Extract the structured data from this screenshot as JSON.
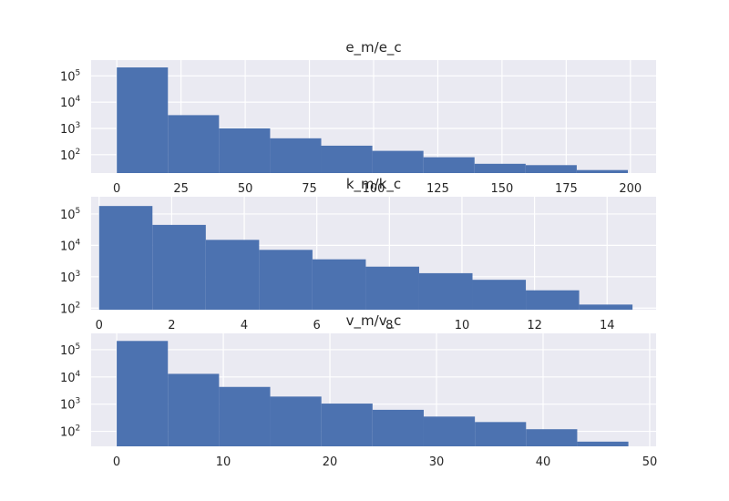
{
  "chart_data": [
    {
      "type": "bar",
      "title": "e_m/e_c",
      "xlabel": "",
      "ylabel": "",
      "yscale": "log",
      "grid": true,
      "bar_color": "#4c72b0",
      "background_color": "#eaeaf2",
      "xlim": [
        -10,
        210
      ],
      "ylim_log10": [
        1.3,
        5.6
      ],
      "xticks": [
        "0",
        "25",
        "50",
        "75",
        "100",
        "125",
        "150",
        "175",
        "200"
      ],
      "xtick_values": [
        0,
        25,
        50,
        75,
        100,
        125,
        150,
        175,
        200
      ],
      "yticks": [
        {
          "base": "10",
          "exp": "2"
        },
        {
          "base": "10",
          "exp": "3"
        },
        {
          "base": "10",
          "exp": "4"
        },
        {
          "base": "10",
          "exp": "5"
        }
      ],
      "ytick_values": [
        100,
        1000,
        10000,
        100000
      ],
      "bin_edges": [
        0,
        19.9,
        39.8,
        59.7,
        79.6,
        99.5,
        119.4,
        139.3,
        159.2,
        179.1,
        199
      ],
      "values": [
        210000,
        3200,
        1000,
        420,
        220,
        140,
        80,
        45,
        40,
        26
      ]
    },
    {
      "type": "bar",
      "title": "k_m/k_c",
      "xlabel": "",
      "ylabel": "",
      "yscale": "log",
      "grid": true,
      "bar_color": "#4c72b0",
      "background_color": "#eaeaf2",
      "xlim": [
        -0.22,
        15.35
      ],
      "ylim_log10": [
        1.95,
        5.55
      ],
      "xticks": [
        "0",
        "2",
        "4",
        "6",
        "8",
        "10",
        "12",
        "14"
      ],
      "xtick_values": [
        0,
        2,
        4,
        6,
        8,
        10,
        12,
        14
      ],
      "yticks": [
        {
          "base": "10",
          "exp": "2"
        },
        {
          "base": "10",
          "exp": "3"
        },
        {
          "base": "10",
          "exp": "4"
        },
        {
          "base": "10",
          "exp": "5"
        }
      ],
      "ytick_values": [
        100,
        1000,
        10000,
        100000
      ],
      "bin_edges": [
        0,
        1.47,
        2.94,
        4.41,
        5.88,
        7.35,
        8.82,
        10.29,
        11.76,
        13.23,
        14.7
      ],
      "values": [
        180000,
        45000,
        15000,
        7200,
        3600,
        2100,
        1300,
        800,
        370,
        130
      ]
    },
    {
      "type": "bar",
      "title": "v_m/v_c",
      "xlabel": "",
      "ylabel": "",
      "yscale": "log",
      "grid": true,
      "bar_color": "#4c72b0",
      "background_color": "#eaeaf2",
      "xlim": [
        -2.4,
        50.6
      ],
      "ylim_log10": [
        1.45,
        5.6
      ],
      "xticks": [
        "0",
        "10",
        "20",
        "30",
        "40",
        "50"
      ],
      "xtick_values": [
        0,
        10,
        20,
        30,
        40,
        50
      ],
      "yticks": [
        {
          "base": "10",
          "exp": "2"
        },
        {
          "base": "10",
          "exp": "3"
        },
        {
          "base": "10",
          "exp": "4"
        },
        {
          "base": "10",
          "exp": "5"
        }
      ],
      "ytick_values": [
        100,
        1000,
        10000,
        100000
      ],
      "bin_edges": [
        0,
        4.8,
        9.6,
        14.4,
        19.2,
        24.0,
        28.8,
        33.6,
        38.4,
        43.2,
        48.0
      ],
      "values": [
        210000,
        13000,
        4300,
        1900,
        1050,
        620,
        350,
        220,
        120,
        42
      ]
    }
  ]
}
